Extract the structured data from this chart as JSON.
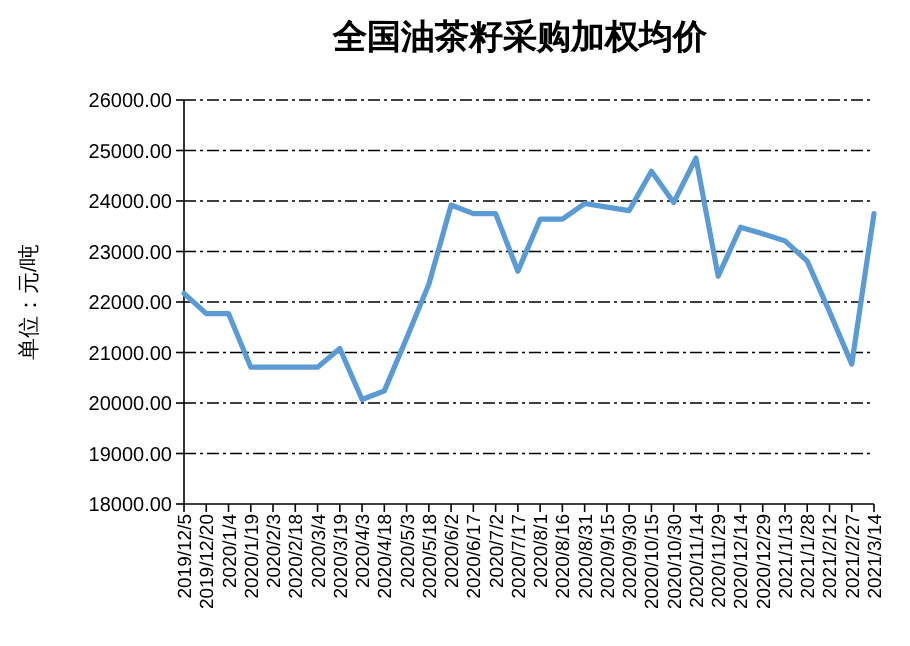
{
  "chart_data": {
    "type": "line",
    "title": "全国油茶籽采购加权均价",
    "ylabel": "单位：元/吨",
    "categories": [
      "2019/12/5",
      "2019/12/20",
      "2020/1/4",
      "2020/1/19",
      "2020/2/3",
      "2020/2/18",
      "2020/3/4",
      "2020/3/19",
      "2020/4/3",
      "2020/4/18",
      "2020/5/3",
      "2020/5/18",
      "2020/6/2",
      "2020/6/17",
      "2020/7/2",
      "2020/7/17",
      "2020/8/1",
      "2020/8/16",
      "2020/8/31",
      "2020/9/15",
      "2020/9/30",
      "2020/10/15",
      "2020/10/30",
      "2020/11/14",
      "2020/11/29",
      "2020/12/14",
      "2020/12/29",
      "2021/1/13",
      "2021/1/28",
      "2021/2/12",
      "2021/2/27",
      "2021/3/14"
    ],
    "series": [
      {
        "color": "#5b9bd5",
        "values": [
          22170,
          21770,
          21770,
          20710,
          20710,
          20710,
          20710,
          21080,
          20070,
          20240,
          21280,
          22350,
          23920,
          23750,
          23750,
          22610,
          23640,
          23640,
          23950,
          23880,
          23810,
          24590,
          23970,
          24850,
          22510,
          23480,
          23350,
          23210,
          22810,
          21810,
          20770,
          23750
        ]
      }
    ],
    "ylim": [
      18000,
      26000
    ],
    "yticks": [
      {
        "value": 18000,
        "label": "18000.00"
      },
      {
        "value": 19000,
        "label": "19000.00"
      },
      {
        "value": 20000,
        "label": "20000.00"
      },
      {
        "value": 21000,
        "label": "21000.00"
      },
      {
        "value": 22000,
        "label": "22000.00"
      },
      {
        "value": 23000,
        "label": "23000.00"
      },
      {
        "value": 24000,
        "label": "24000.00"
      },
      {
        "value": 25000,
        "label": "25000.00"
      },
      {
        "value": 26000,
        "label": "26000.00"
      }
    ],
    "grid": "y",
    "line_style": "solid",
    "marker": "none"
  }
}
